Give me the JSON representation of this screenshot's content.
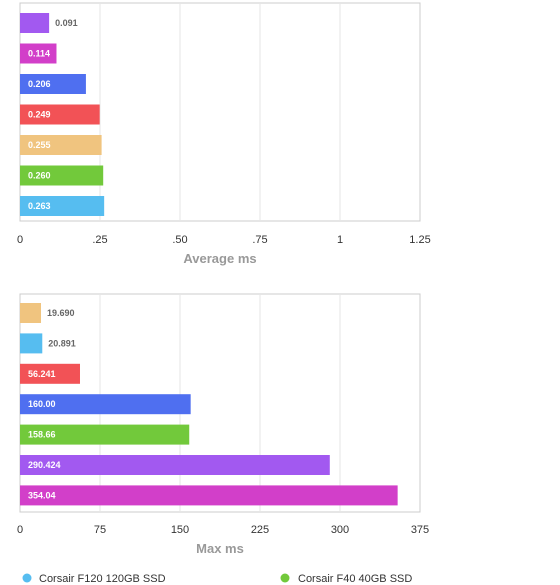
{
  "chart_data": [
    {
      "type": "bar",
      "orientation": "horizontal",
      "xlabel": "Average ms",
      "xlim": [
        0,
        1.25
      ],
      "x_ticks": [
        "0",
        ".25",
        ".50",
        ".75",
        "1",
        "1.25"
      ],
      "grid": true,
      "bars": [
        {
          "series": "",
          "value": 0.091,
          "label": "0.091",
          "color": "#a259f0",
          "label_inside": false
        },
        {
          "series": "",
          "value": 0.114,
          "label": "0.114",
          "color": "#d23fc9",
          "label_inside": true
        },
        {
          "series": "",
          "value": 0.206,
          "label": "0.206",
          "color": "#4f6ff0",
          "label_inside": true
        },
        {
          "series": "",
          "value": 0.249,
          "label": "0.249",
          "color": "#f25256",
          "label_inside": true
        },
        {
          "series": "",
          "value": 0.255,
          "label": "0.255",
          "color": "#f0c47f",
          "label_inside": true
        },
        {
          "series": "",
          "value": 0.26,
          "label": "0.260",
          "color": "#72c93b",
          "label_inside": true
        },
        {
          "series": "",
          "value": 0.263,
          "label": "0.263",
          "color": "#56bdf0",
          "label_inside": true
        }
      ]
    },
    {
      "type": "bar",
      "orientation": "horizontal",
      "xlabel": "Max ms",
      "xlim": [
        0,
        375
      ],
      "x_ticks": [
        "0",
        "75",
        "150",
        "225",
        "300",
        "375"
      ],
      "grid": true,
      "bars": [
        {
          "series": "",
          "value": 19.69,
          "label": "19.690",
          "color": "#f0c47f",
          "label_inside": false
        },
        {
          "series": "Corsair F120 120GB SSD",
          "value": 20.891,
          "label": "20.891",
          "color": "#56bdf0",
          "label_inside": false
        },
        {
          "series": "",
          "value": 56.241,
          "label": "56.241",
          "color": "#f25256",
          "label_inside": true
        },
        {
          "series": "",
          "value": 160.0,
          "label": "160.00",
          "color": "#4f6ff0",
          "label_inside": true
        },
        {
          "series": "Corsair F40 40GB SSD",
          "value": 158.66,
          "label": "158.66",
          "color": "#72c93b",
          "label_inside": true
        },
        {
          "series": "",
          "value": 290.424,
          "label": "290.424",
          "color": "#a259f0",
          "label_inside": true
        },
        {
          "series": "",
          "value": 354.04,
          "label": "354.04",
          "color": "#d23fc9",
          "label_inside": true
        }
      ]
    }
  ],
  "legend": {
    "placement": "bottom",
    "items": [
      {
        "name": "Corsair F120 120GB SSD",
        "color": "#56bdf0"
      },
      {
        "name": "Corsair F40 40GB SSD",
        "color": "#72c93b"
      }
    ]
  }
}
